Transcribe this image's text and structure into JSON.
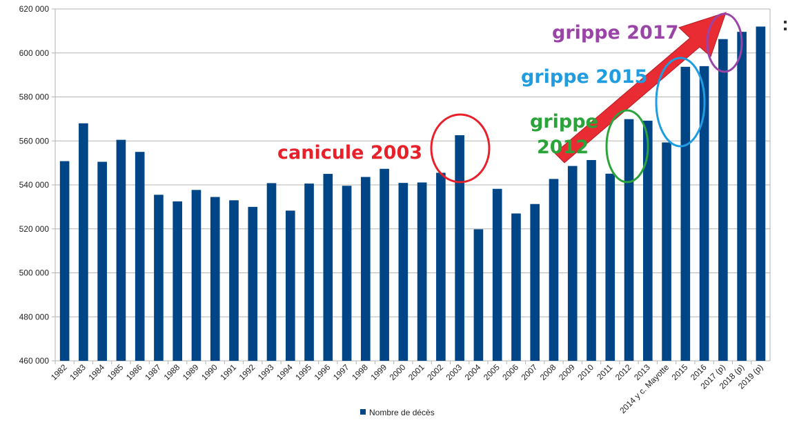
{
  "chart_data": {
    "type": "bar",
    "categories": [
      "1982",
      "1983",
      "1984",
      "1985",
      "1986",
      "1987",
      "1988",
      "1989",
      "1990",
      "1991",
      "1992",
      "1993",
      "1994",
      "1995",
      "1996",
      "1997",
      "1998",
      "1999",
      "2000",
      "2001",
      "2002",
      "2003",
      "2004",
      "2005",
      "2006",
      "2007",
      "2008",
      "2009",
      "2010",
      "2011",
      "2012",
      "2013",
      "2014 y c. Mayotte",
      "2015",
      "2016",
      "2017 (p)",
      "2018 (p)",
      "2019 (p)"
    ],
    "series": [
      {
        "name": "Nombre de décès",
        "color": "#004586",
        "values": [
          550800,
          568000,
          550500,
          560500,
          555000,
          535500,
          532500,
          537700,
          534500,
          533000,
          530000,
          540800,
          528300,
          540600,
          545000,
          539600,
          543600,
          547300,
          540900,
          541100,
          545500,
          562600,
          519800,
          538200,
          527000,
          531300,
          542700,
          548600,
          551300,
          545100,
          569900,
          569200,
          559300,
          593700,
          594000,
          606300,
          609600,
          612000
        ]
      }
    ],
    "ylim": [
      460000,
      620000
    ],
    "yticks": [
      "460 000",
      "480 000",
      "500 000",
      "520 000",
      "540 000",
      "560 000",
      "580 000",
      "600 000",
      "620 000"
    ],
    "ytick_values": [
      460000,
      480000,
      500000,
      520000,
      540000,
      560000,
      580000,
      600000,
      620000
    ],
    "grid": true,
    "legend_position": "bottom-center",
    "annotations": [
      {
        "text": "canicule 2003",
        "color": "#e8202a",
        "target": "2003"
      },
      {
        "text": "grippe 2012",
        "lines": [
          "grippe",
          "2012"
        ],
        "color": "#2aa33a",
        "target": "2012"
      },
      {
        "text": "grippe 2015",
        "color": "#1f9de0",
        "target": "2015"
      },
      {
        "text": "grippe 2017",
        "color": "#9b44a8",
        "target": "2017 (p)"
      }
    ],
    "arrow_color": "#e8202a"
  }
}
